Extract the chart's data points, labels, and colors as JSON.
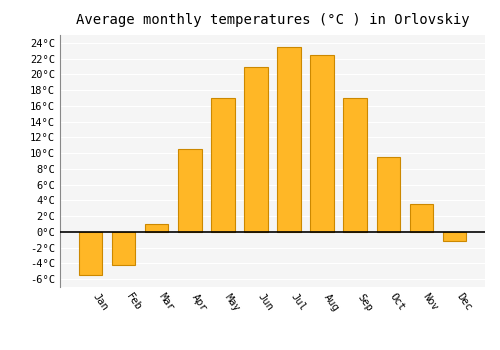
{
  "title": "Average monthly temperatures (°C ) in Orlovskiy",
  "months": [
    "Jan",
    "Feb",
    "Mar",
    "Apr",
    "May",
    "Jun",
    "Jul",
    "Aug",
    "Sep",
    "Oct",
    "Nov",
    "Dec"
  ],
  "values": [
    -5.5,
    -4.2,
    1.0,
    10.5,
    17.0,
    21.0,
    23.5,
    22.5,
    17.0,
    9.5,
    3.5,
    -1.2
  ],
  "bar_color": "#FFB726",
  "bar_edge_color": "#CC8800",
  "ylim": [
    -7,
    25
  ],
  "yticks": [
    -6,
    -4,
    -2,
    0,
    2,
    4,
    6,
    8,
    10,
    12,
    14,
    16,
    18,
    20,
    22,
    24
  ],
  "ytick_labels": [
    "-6°C",
    "-4°C",
    "-2°C",
    "0°C",
    "2°C",
    "4°C",
    "6°C",
    "8°C",
    "10°C",
    "12°C",
    "14°C",
    "16°C",
    "18°C",
    "20°C",
    "22°C",
    "24°C"
  ],
  "background_color": "#ffffff",
  "plot_bg_color": "#f5f5f5",
  "title_fontsize": 10,
  "tick_fontsize": 7.5,
  "bar_width": 0.7
}
